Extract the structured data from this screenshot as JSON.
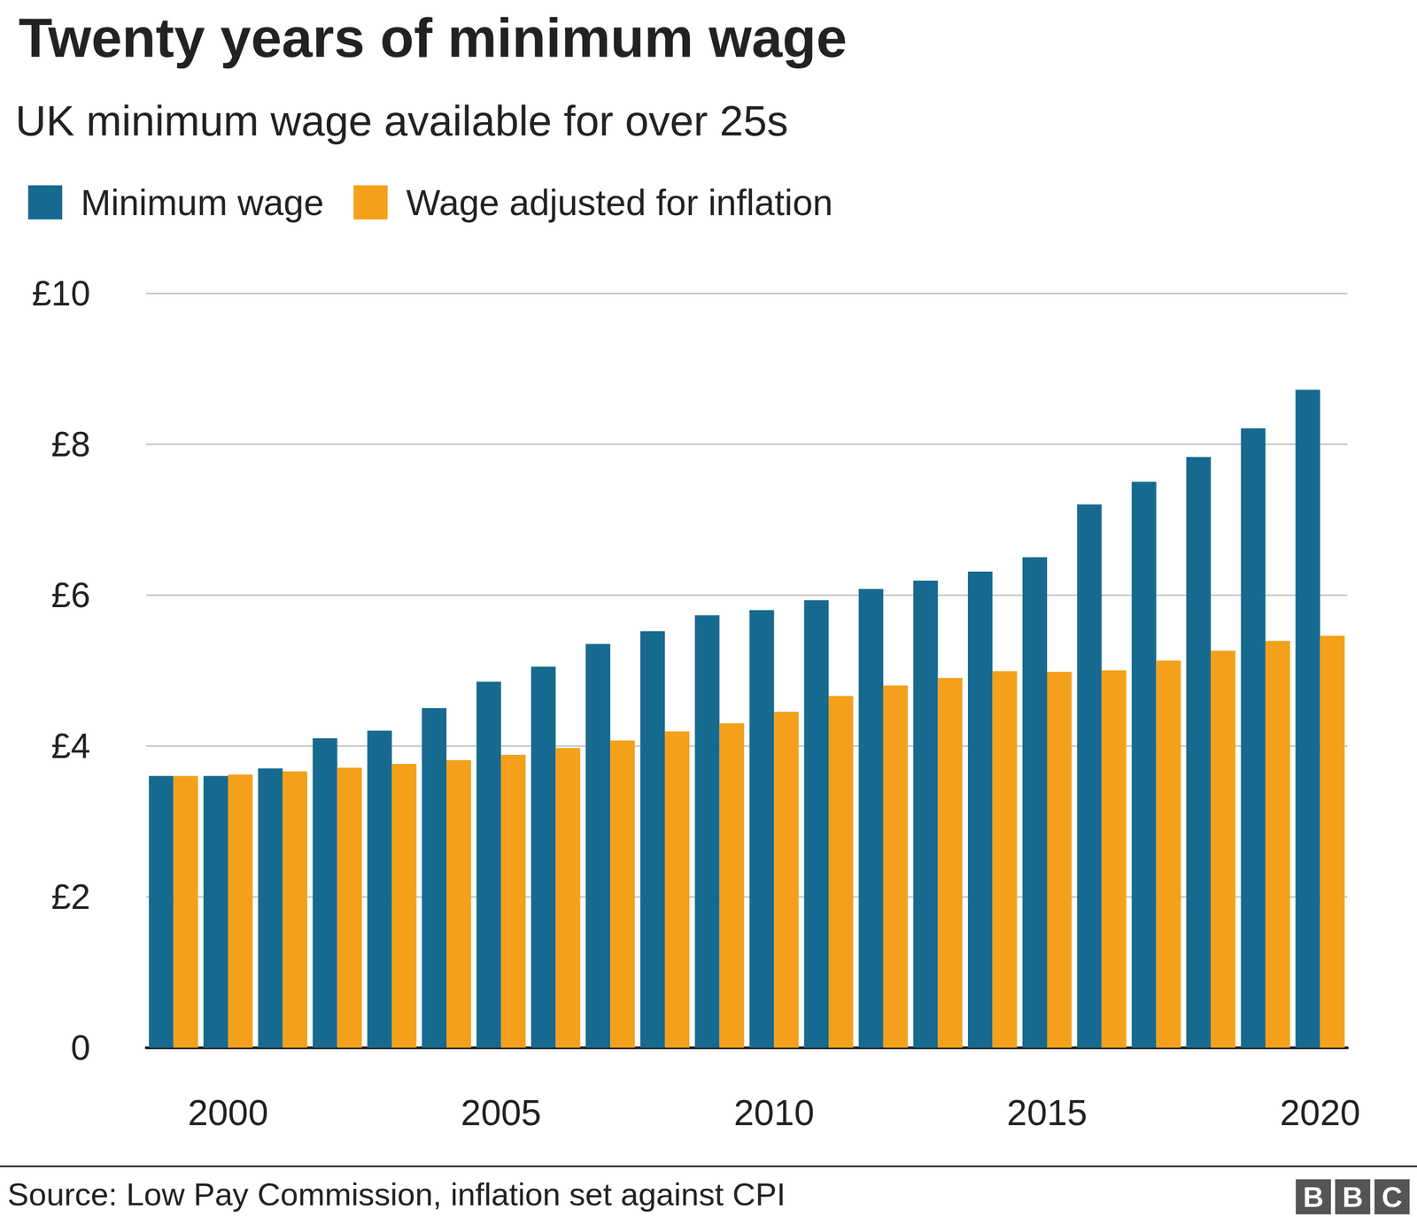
{
  "chart_data": {
    "type": "bar",
    "title": "Twenty years of minimum wage",
    "subtitle": "UK minimum wage available for over 25s",
    "source": "Source: Low Pay Commission, inflation set against CPI",
    "logo": "BBC",
    "categories": [
      null,
      "2000",
      null,
      null,
      null,
      null,
      "2005",
      null,
      null,
      null,
      null,
      "2010",
      null,
      null,
      null,
      null,
      "2015",
      null,
      null,
      null,
      null,
      "2020"
    ],
    "series": [
      {
        "name": "Minimum wage",
        "color": "#176a8f",
        "values": [
          3.6,
          3.6,
          3.7,
          4.1,
          4.2,
          4.5,
          4.85,
          5.05,
          5.35,
          5.52,
          5.73,
          5.8,
          5.93,
          6.08,
          6.19,
          6.31,
          6.5,
          7.2,
          7.5,
          7.83,
          8.21,
          8.72
        ]
      },
      {
        "name": "Wage adjusted for inflation",
        "color": "#f5a01a",
        "values": [
          3.6,
          3.62,
          3.66,
          3.71,
          3.76,
          3.81,
          3.88,
          3.97,
          4.07,
          4.19,
          4.3,
          4.45,
          4.66,
          4.8,
          4.9,
          4.99,
          4.98,
          5.0,
          5.13,
          5.26,
          5.39,
          5.46
        ]
      }
    ],
    "ylim": [
      0,
      10
    ],
    "yticks": [
      0,
      {
        "value": 2,
        "label": "£2"
      },
      {
        "value": 4,
        "label": "£4"
      },
      {
        "value": 6,
        "label": "£6"
      },
      {
        "value": 8,
        "label": "£8"
      },
      {
        "value": 10,
        "label": "£10"
      }
    ],
    "grid": true,
    "legend": "top-left"
  }
}
